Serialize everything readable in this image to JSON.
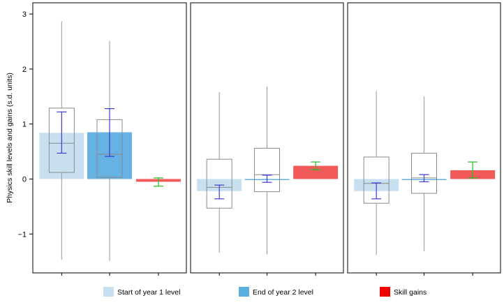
{
  "chart_data": {
    "type": "box",
    "ylabel": "Physics skill levels and gains (s.d. units)",
    "ylim": [
      -1.75,
      3.2
    ],
    "yticks": [
      -1,
      0,
      1,
      2,
      3
    ],
    "ytick_labels": [
      "−1",
      "0",
      "1",
      "2",
      "3"
    ],
    "legend": {
      "placement": "bottom",
      "items": [
        {
          "label": "Start of year 1 level",
          "color": "#c8dff0"
        },
        {
          "label": "End of year 2 level",
          "color": "#5aaee0"
        },
        {
          "label": "Skill gains",
          "color": "#f00000"
        }
      ]
    },
    "series_styles": [
      {
        "bar_color": "#c8dff0",
        "err_color": "#3b3bd6"
      },
      {
        "bar_color": "#66b3e3",
        "err_color": "#3b3bd6"
      },
      {
        "bar_color": "#f25a5a",
        "err_color": "#22c022"
      }
    ],
    "panels": [
      {
        "groups": [
          {
            "bar": 0.84,
            "ci": [
              0.47,
              1.22
            ],
            "box": {
              "q1": 0.12,
              "median": 0.65,
              "q3": 1.29
            },
            "whisker": [
              -1.47,
              2.87
            ]
          },
          {
            "bar": 0.85,
            "ci": [
              0.41,
              1.28
            ],
            "box": {
              "q1": 0.03,
              "median": 0.45,
              "q3": 1.08
            },
            "whisker": [
              -1.49,
              2.51
            ]
          },
          {
            "bar": -0.05,
            "ci": [
              -0.13,
              0.02
            ],
            "box": null,
            "whisker": null
          }
        ]
      },
      {
        "groups": [
          {
            "bar": -0.22,
            "ci": [
              -0.36,
              -0.11
            ],
            "box": {
              "q1": -0.53,
              "median": -0.15,
              "q3": 0.36
            },
            "whisker": [
              -1.34,
              1.58
            ]
          },
          {
            "bar": 0.0,
            "ci": [
              -0.06,
              0.07
            ],
            "box": {
              "q1": -0.23,
              "median": 0.08,
              "q3": 0.56
            },
            "whisker": [
              -1.37,
              1.68
            ]
          },
          {
            "bar": 0.24,
            "ci": [
              0.17,
              0.31
            ],
            "box": null,
            "whisker": null
          }
        ]
      },
      {
        "groups": [
          {
            "bar": -0.22,
            "ci": [
              -0.36,
              -0.07
            ],
            "box": {
              "q1": -0.44,
              "median": -0.08,
              "q3": 0.4
            },
            "whisker": [
              -1.38,
              1.6
            ]
          },
          {
            "bar": 0.0,
            "ci": [
              -0.05,
              0.08
            ],
            "box": {
              "q1": -0.26,
              "median": 0.02,
              "q3": 0.47
            },
            "whisker": [
              -1.31,
              1.5
            ]
          },
          {
            "bar": 0.16,
            "ci": [
              0.02,
              0.31
            ],
            "box": null,
            "whisker": null
          }
        ]
      }
    ]
  }
}
